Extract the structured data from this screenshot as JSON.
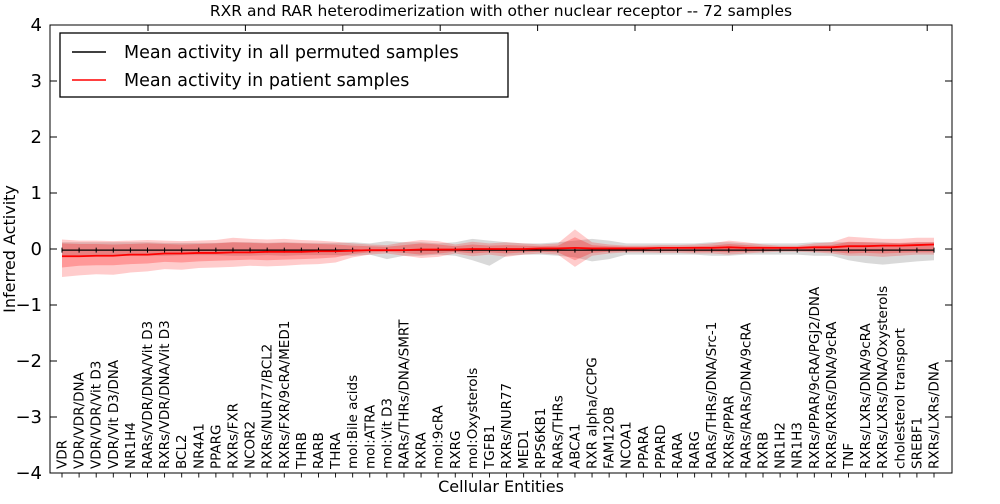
{
  "figure": {
    "title": "RXR and RAR heterodimerization with other nuclear receptor -- 72 samples",
    "xlabel": "Cellular Entities",
    "ylabel": "Inferred Activity"
  },
  "legend": {
    "position": "upper left",
    "items": [
      {
        "label": "Mean activity in all permuted samples",
        "color": "#000000"
      },
      {
        "label": "Mean activity in patient samples",
        "color": "#ff0000"
      }
    ]
  },
  "chart_data": {
    "type": "line",
    "title": "RXR and RAR heterodimerization with other nuclear receptor -- 72 samples",
    "xlabel": "Cellular Entities",
    "ylabel": "Inferred Activity",
    "ylim": [
      -4,
      4
    ],
    "yticks": [
      4,
      3,
      2,
      1,
      0,
      -1,
      -2,
      -3,
      -4
    ],
    "ytick_labels": [
      "4",
      "3",
      "2",
      "1",
      "0",
      "−1",
      "−2",
      "−3",
      "−4"
    ],
    "grid": false,
    "legend_position": "upper left",
    "categories": [
      "VDR",
      "VDR/VDR/DNA",
      "VDR/VDR/Vit D3",
      "VDR/Vit D3/DNA",
      "NR1H4",
      "RARs/VDR/DNA/Vit D3",
      "RXRs/VDR/DNA/Vit D3",
      "BCL2",
      "NR4A1",
      "PPARG",
      "RXRs/FXR",
      "NCOR2",
      "RXRs/NUR77/BCL2",
      "RXRs/FXR/9cRA/MED1",
      "THRB",
      "RARB",
      "THRA",
      "mol:Bile acids",
      "mol:ATRA",
      "mol:Vit D3",
      "RARs/THRs/DNA/SMRT",
      "RXRA",
      "mol:9cRA",
      "RXRG",
      "mol:Oxysterols",
      "TGFB1",
      "RXRs/NUR77",
      "MED1",
      "RPS6KB1",
      "RARs/THRs",
      "ABCA1",
      "RXR alpha/CCPG",
      "FAM120B",
      "NCOA1",
      "PPARA",
      "PPARD",
      "RARA",
      "RARG",
      "RARs/THRs/DNA/Src-1",
      "RXRs/PPAR",
      "RARs/RARs/DNA/9cRA",
      "RXRB",
      "NR1H2",
      "NR1H3",
      "RXRs/PPAR/9cRA/PGJ2/DNA",
      "RXRs/RXRs/DNA/9cRA",
      "TNF",
      "RXRs/LXRs/DNA/9cRA",
      "RXRs/LXRs/DNA/Oxysterols",
      "cholesterol transport",
      "SREBF1",
      "RXRs/LXRs/DNA"
    ],
    "series": [
      {
        "name": "Mean activity in all permuted samples",
        "color": "#000000",
        "marker": "tick",
        "values": [
          -0.02,
          -0.02,
          -0.02,
          -0.02,
          -0.02,
          -0.02,
          -0.02,
          -0.02,
          -0.02,
          -0.02,
          -0.02,
          -0.02,
          -0.02,
          -0.02,
          -0.02,
          -0.02,
          -0.02,
          -0.02,
          -0.02,
          -0.02,
          -0.02,
          -0.02,
          -0.02,
          -0.02,
          -0.02,
          -0.02,
          -0.02,
          -0.02,
          -0.02,
          -0.02,
          -0.02,
          -0.02,
          -0.02,
          -0.02,
          -0.02,
          -0.02,
          -0.02,
          -0.02,
          -0.02,
          -0.02,
          -0.02,
          -0.02,
          -0.02,
          -0.02,
          -0.02,
          -0.02,
          -0.02,
          -0.02,
          -0.02,
          -0.02,
          -0.02,
          -0.02
        ]
      },
      {
        "name": "Mean activity in patient samples",
        "color": "#ff0000",
        "marker": "none",
        "values": [
          -0.13,
          -0.13,
          -0.12,
          -0.12,
          -0.1,
          -0.1,
          -0.08,
          -0.08,
          -0.07,
          -0.07,
          -0.06,
          -0.06,
          -0.05,
          -0.05,
          -0.05,
          -0.04,
          -0.04,
          -0.03,
          -0.02,
          -0.02,
          -0.02,
          -0.01,
          -0.01,
          -0.01,
          0.0,
          0.0,
          0.0,
          0.0,
          0.01,
          0.01,
          0.02,
          0.01,
          0.01,
          0.01,
          0.01,
          0.02,
          0.02,
          0.02,
          0.02,
          0.03,
          0.02,
          0.02,
          0.02,
          0.02,
          0.03,
          0.03,
          0.05,
          0.05,
          0.06,
          0.06,
          0.07,
          0.08
        ]
      }
    ],
    "bands": [
      {
        "name": "permuted-samples-range",
        "color": "#c0c0c0",
        "opacity": 0.6,
        "upper": [
          0.12,
          0.12,
          0.12,
          0.12,
          0.12,
          0.12,
          0.11,
          0.11,
          0.11,
          0.11,
          0.12,
          0.12,
          0.11,
          0.12,
          0.11,
          0.11,
          0.11,
          0.12,
          0.1,
          0.14,
          0.12,
          0.12,
          0.1,
          0.12,
          0.18,
          0.15,
          0.12,
          0.1,
          0.1,
          0.12,
          0.15,
          0.18,
          0.15,
          0.1,
          0.1,
          0.1,
          0.1,
          0.1,
          0.12,
          0.12,
          0.1,
          0.1,
          0.1,
          0.1,
          0.12,
          0.12,
          0.12,
          0.12,
          0.12,
          0.1,
          0.12,
          0.12
        ],
        "lower": [
          -0.13,
          -0.13,
          -0.13,
          -0.12,
          -0.12,
          -0.12,
          -0.12,
          -0.11,
          -0.11,
          -0.11,
          -0.12,
          -0.12,
          -0.11,
          -0.12,
          -0.11,
          -0.11,
          -0.11,
          -0.12,
          -0.1,
          -0.18,
          -0.12,
          -0.12,
          -0.1,
          -0.12,
          -0.2,
          -0.3,
          -0.12,
          -0.1,
          -0.1,
          -0.12,
          -0.15,
          -0.22,
          -0.18,
          -0.1,
          -0.1,
          -0.1,
          -0.1,
          -0.1,
          -0.12,
          -0.12,
          -0.1,
          -0.1,
          -0.1,
          -0.1,
          -0.12,
          -0.12,
          -0.2,
          -0.25,
          -0.28,
          -0.25,
          -0.22,
          -0.2
        ]
      },
      {
        "name": "patient-samples-range-outer",
        "color": "#ff0000",
        "opacity": 0.2,
        "upper": [
          0.17,
          0.15,
          0.15,
          0.14,
          0.15,
          0.16,
          0.15,
          0.14,
          0.15,
          0.16,
          0.2,
          0.18,
          0.17,
          0.18,
          0.16,
          0.15,
          0.13,
          0.1,
          0.08,
          0.07,
          0.12,
          0.16,
          0.14,
          0.08,
          0.13,
          0.1,
          0.12,
          0.1,
          0.08,
          0.1,
          0.35,
          0.12,
          0.08,
          0.06,
          0.06,
          0.07,
          0.07,
          0.08,
          0.1,
          0.15,
          0.12,
          0.08,
          0.06,
          0.06,
          0.1,
          0.12,
          0.22,
          0.2,
          0.18,
          0.18,
          0.2,
          0.2
        ],
        "lower": [
          -0.5,
          -0.47,
          -0.45,
          -0.46,
          -0.42,
          -0.4,
          -0.36,
          -0.37,
          -0.34,
          -0.33,
          -0.32,
          -0.3,
          -0.31,
          -0.3,
          -0.28,
          -0.27,
          -0.24,
          -0.15,
          -0.1,
          -0.08,
          -0.12,
          -0.16,
          -0.14,
          -0.08,
          -0.13,
          -0.1,
          -0.14,
          -0.1,
          -0.08,
          -0.1,
          -0.32,
          -0.12,
          -0.08,
          -0.06,
          -0.06,
          -0.07,
          -0.07,
          -0.08,
          -0.08,
          -0.1,
          -0.08,
          -0.06,
          -0.05,
          -0.05,
          -0.06,
          -0.08,
          -0.12,
          -0.12,
          -0.14,
          -0.12,
          -0.1,
          -0.1
        ]
      },
      {
        "name": "patient-samples-range-inner",
        "color": "#ff0000",
        "opacity": 0.25,
        "upper": [
          0.1,
          0.09,
          0.09,
          0.08,
          0.09,
          0.1,
          0.09,
          0.08,
          0.09,
          0.1,
          0.12,
          0.11,
          0.1,
          0.11,
          0.1,
          0.09,
          0.08,
          0.06,
          0.05,
          0.04,
          0.07,
          0.1,
          0.08,
          0.05,
          0.08,
          0.06,
          0.07,
          0.06,
          0.05,
          0.06,
          0.21,
          0.07,
          0.05,
          0.04,
          0.04,
          0.04,
          0.04,
          0.05,
          0.06,
          0.09,
          0.07,
          0.05,
          0.04,
          0.04,
          0.06,
          0.07,
          0.13,
          0.12,
          0.11,
          0.11,
          0.12,
          0.12
        ],
        "lower": [
          -0.33,
          -0.3,
          -0.29,
          -0.29,
          -0.27,
          -0.26,
          -0.23,
          -0.24,
          -0.22,
          -0.21,
          -0.2,
          -0.19,
          -0.2,
          -0.19,
          -0.18,
          -0.17,
          -0.15,
          -0.09,
          -0.06,
          -0.05,
          -0.07,
          -0.1,
          -0.08,
          -0.05,
          -0.08,
          -0.06,
          -0.08,
          -0.06,
          -0.05,
          -0.06,
          -0.2,
          -0.07,
          -0.05,
          -0.04,
          -0.04,
          -0.04,
          -0.04,
          -0.05,
          -0.05,
          -0.06,
          -0.05,
          -0.04,
          -0.03,
          -0.03,
          -0.04,
          -0.05,
          -0.08,
          -0.07,
          -0.08,
          -0.07,
          -0.06,
          -0.06
        ]
      }
    ]
  }
}
